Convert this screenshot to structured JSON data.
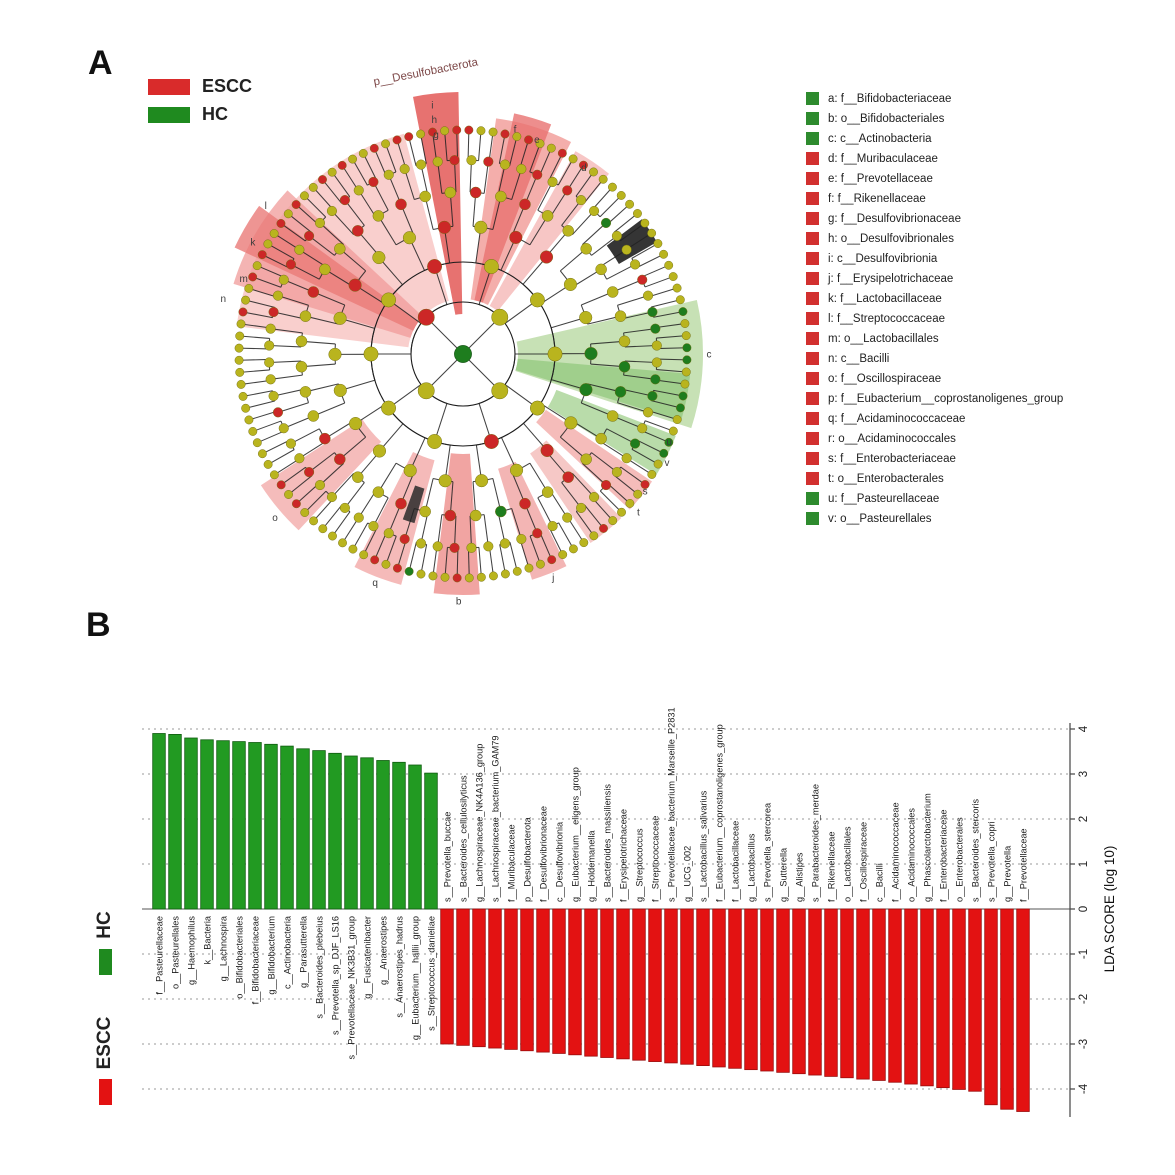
{
  "panel_a": {
    "label": "A",
    "group_legend": [
      {
        "name": "ESCC",
        "color": "#d92b2b"
      },
      {
        "name": "HC",
        "color": "#1f8a1f"
      }
    ],
    "top_annotation": "p__Desulfobacterota",
    "cladogram_letters": [
      {
        "letter": "g",
        "angle": 353,
        "r": 221
      },
      {
        "letter": "h",
        "angle": 353,
        "r": 236
      },
      {
        "letter": "i",
        "angle": 353,
        "r": 251
      },
      {
        "letter": "f",
        "angle": 13,
        "r": 231
      },
      {
        "letter": "e",
        "angle": 19,
        "r": 227
      },
      {
        "letter": "d",
        "angle": 33,
        "r": 222
      },
      {
        "letter": "c",
        "angle": 90,
        "r": 246
      },
      {
        "letter": "u",
        "angle": 113,
        "r": 224
      },
      {
        "letter": "v",
        "angle": 118,
        "r": 231
      },
      {
        "letter": "s",
        "angle": 127,
        "r": 228
      },
      {
        "letter": "t",
        "angle": 132,
        "r": 236
      },
      {
        "letter": "j",
        "angle": 158,
        "r": 241
      },
      {
        "letter": "b",
        "angle": 181,
        "r": 247
      },
      {
        "letter": "q",
        "angle": 201,
        "r": 245
      },
      {
        "letter": "o",
        "angle": 229,
        "r": 249
      },
      {
        "letter": "l",
        "angle": 307,
        "r": 247
      },
      {
        "letter": "k",
        "angle": 298,
        "r": 238
      },
      {
        "letter": "m",
        "angle": 289,
        "r": 232
      },
      {
        "letter": "n",
        "angle": 283,
        "r": 246
      }
    ],
    "taxa_legend": [
      {
        "key": "a",
        "label": "f__Bifidobacteriaceae",
        "group": "HC"
      },
      {
        "key": "b",
        "label": "o__Bifidobacteriales",
        "group": "HC"
      },
      {
        "key": "c",
        "label": "c__Actinobacteria",
        "group": "HC"
      },
      {
        "key": "d",
        "label": "f__Muribaculaceae",
        "group": "ESCC"
      },
      {
        "key": "e",
        "label": "f__Prevotellaceae",
        "group": "ESCC"
      },
      {
        "key": "f",
        "label": "f__Rikenellaceae",
        "group": "ESCC"
      },
      {
        "key": "g",
        "label": "f__Desulfovibrionaceae",
        "group": "ESCC"
      },
      {
        "key": "h",
        "label": "o__Desulfovibrionales",
        "group": "ESCC"
      },
      {
        "key": "i",
        "label": "c__Desulfovibrionia",
        "group": "ESCC"
      },
      {
        "key": "j",
        "label": "f__Erysipelotrichaceae",
        "group": "ESCC"
      },
      {
        "key": "k",
        "label": "f__Lactobacillaceae",
        "group": "ESCC"
      },
      {
        "key": "l",
        "label": "f__Streptococcaceae",
        "group": "ESCC"
      },
      {
        "key": "m",
        "label": "o__Lactobacillales",
        "group": "ESCC"
      },
      {
        "key": "n",
        "label": "c__Bacilli",
        "group": "ESCC"
      },
      {
        "key": "o",
        "label": "f__Oscillospiraceae",
        "group": "ESCC"
      },
      {
        "key": "p",
        "label": "f__Eubacterium__coprostanoligenes_group",
        "group": "ESCC"
      },
      {
        "key": "q",
        "label": "f__Acidaminococcaceae",
        "group": "ESCC"
      },
      {
        "key": "r",
        "label": "o__Acidaminococcales",
        "group": "ESCC"
      },
      {
        "key": "s",
        "label": "f__Enterobacteriaceae",
        "group": "ESCC"
      },
      {
        "key": "t",
        "label": "o__Enterobacterales",
        "group": "ESCC"
      },
      {
        "key": "u",
        "label": "f__Pasteurellaceae",
        "group": "HC"
      },
      {
        "key": "v",
        "label": "o__Pasteurellales",
        "group": "HC"
      }
    ]
  },
  "panel_b": {
    "label": "B",
    "side_legend": [
      {
        "name": "HC",
        "color": "#1f8a1f"
      },
      {
        "name": "ESCC",
        "color": "#e31212"
      }
    ],
    "axis": {
      "title": "LDA SCORE (log 10)",
      "ticks": [
        4,
        3,
        2,
        1,
        0,
        -1,
        -2,
        -3,
        -4
      ]
    }
  },
  "chart_data": {
    "type": "bar",
    "title": "",
    "xlabel": "",
    "ylabel": "LDA SCORE (log 10)",
    "ylim": [
      -4.6,
      4.2
    ],
    "grid": "dotted-horizontal",
    "series": [
      {
        "name": "HC",
        "color": "#229a22",
        "bars": [
          {
            "label": "f__Pasteurellaceae",
            "value": 3.9
          },
          {
            "label": "o__Pasteurellales",
            "value": 3.88
          },
          {
            "label": "g__Haemophilus",
            "value": 3.8
          },
          {
            "label": "k__Bacteria",
            "value": 3.76
          },
          {
            "label": "g__Lachnospira",
            "value": 3.74
          },
          {
            "label": "o__Bifidobacteriales",
            "value": 3.72
          },
          {
            "label": "f__Bifidobacteriaceae",
            "value": 3.7
          },
          {
            "label": "g__Bifidobacterium",
            "value": 3.66
          },
          {
            "label": "c__Actinobacteria",
            "value": 3.62
          },
          {
            "label": "g__Parasutterella",
            "value": 3.56
          },
          {
            "label": "s__Bacteroides_plebeius",
            "value": 3.52
          },
          {
            "label": "s__Prevotella_sp_DJF_LS16",
            "value": 3.46
          },
          {
            "label": "s__Prevotellaceae_NK3B31_group",
            "value": 3.4
          },
          {
            "label": "g__Fusicatenibacter",
            "value": 3.36
          },
          {
            "label": "g__Anaerostipes",
            "value": 3.3
          },
          {
            "label": "s__Anaerostipes_hadrus",
            "value": 3.26
          },
          {
            "label": "g__Eubacterium__hallii_group",
            "value": 3.2
          },
          {
            "label": "s__Streptococcus_danieliae",
            "value": 3.02
          }
        ]
      },
      {
        "name": "ESCC",
        "color": "#e31212",
        "bars": [
          {
            "label": "s__Prevotella_buccae",
            "value": -3.0
          },
          {
            "label": "s__Bacteroides_cellulosilyticus",
            "value": -3.03
          },
          {
            "label": "g__Lachnospiraceae_NK4A136_group",
            "value": -3.06
          },
          {
            "label": "s__Lachnospiraceae_bacterium_GAM79",
            "value": -3.09
          },
          {
            "label": "f__Muribaculaceae",
            "value": -3.12
          },
          {
            "label": "p__Desulfobacterota",
            "value": -3.15
          },
          {
            "label": "f__Desulfovibrionaceae",
            "value": -3.18
          },
          {
            "label": "c__Desulfovibrionia",
            "value": -3.21
          },
          {
            "label": "g__Eubacterium__eligens_group",
            "value": -3.24
          },
          {
            "label": "g__Holdemanella",
            "value": -3.27
          },
          {
            "label": "s__Bacteroides_massiliensis",
            "value": -3.3
          },
          {
            "label": "f__Erysipelotrichaceae",
            "value": -3.33
          },
          {
            "label": "g__Streptococcus",
            "value": -3.36
          },
          {
            "label": "f__Streptococcaceae",
            "value": -3.39
          },
          {
            "label": "s__Prevotellaceae_bacterium_Marseille_P2831",
            "value": -3.42
          },
          {
            "label": "g__UCG_002",
            "value": -3.45
          },
          {
            "label": "s__Lactobacillus_salivarius",
            "value": -3.48
          },
          {
            "label": "f__Eubacterium__coprostanoligenes_group",
            "value": -3.51
          },
          {
            "label": "f__Lactobacillaceae",
            "value": -3.54
          },
          {
            "label": "g__Lactobacillus",
            "value": -3.57
          },
          {
            "label": "s__Prevotella_stercorea",
            "value": -3.6
          },
          {
            "label": "g__Sutterella",
            "value": -3.63
          },
          {
            "label": "g__Alistipes",
            "value": -3.66
          },
          {
            "label": "s__Parabacteroides_merdae",
            "value": -3.69
          },
          {
            "label": "f__Rikenellaceae",
            "value": -3.72
          },
          {
            "label": "o__Lactobacillales",
            "value": -3.75
          },
          {
            "label": "f__Oscillospiraceae",
            "value": -3.78
          },
          {
            "label": "c__Bacilli",
            "value": -3.81
          },
          {
            "label": "f__Acidaminococcaceae",
            "value": -3.85
          },
          {
            "label": "o__Acidaminococcales",
            "value": -3.89
          },
          {
            "label": "g__Phascolarctobacterium",
            "value": -3.93
          },
          {
            "label": "f__Enterobacteriaceae",
            "value": -3.97
          },
          {
            "label": "o__Enterobacterales",
            "value": -4.01
          },
          {
            "label": "s__Bacteroides_stercoris",
            "value": -4.05
          },
          {
            "label": "s__Prevotella_copri",
            "value": -4.35
          },
          {
            "label": "g__Prevotella",
            "value": -4.45
          },
          {
            "label": "f__Prevotellaceae",
            "value": -4.5
          }
        ]
      }
    ]
  },
  "colors": {
    "node_default": "#b9b41e",
    "node_red": "#cc2727",
    "node_green": "#1e7d1e",
    "wedge_red": "#f0908f",
    "wedge_green": "#9ed096",
    "escc": "#e31212",
    "hc": "#1f8a1f"
  }
}
